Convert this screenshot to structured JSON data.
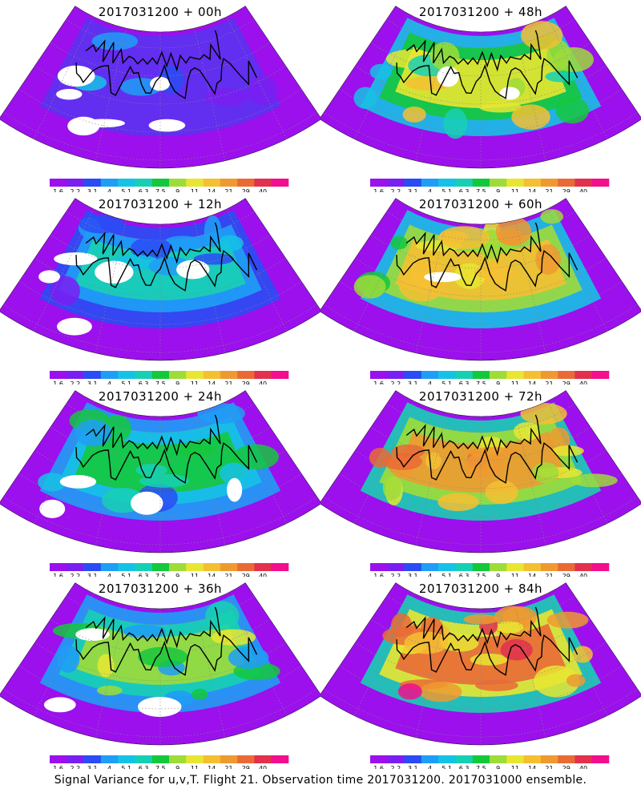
{
  "panels": [
    {
      "title": "2017031200 + 00h",
      "level": 0
    },
    {
      "title": "2017031200 + 48h",
      "level": 4
    },
    {
      "title": "2017031200 + 12h",
      "level": 1
    },
    {
      "title": "2017031200 + 60h",
      "level": 5
    },
    {
      "title": "2017031200 + 24h",
      "level": 2
    },
    {
      "title": "2017031200 + 72h",
      "level": 6
    },
    {
      "title": "2017031200 + 36h",
      "level": 3
    },
    {
      "title": "2017031200 + 84h",
      "level": 7
    }
  ],
  "colorbar": {
    "labels": [
      "1.6",
      "2.2",
      "3.1",
      "4",
      "5.1",
      "6.3",
      "7.5",
      "9",
      "11",
      "14",
      "21",
      "29",
      "40"
    ],
    "colors": [
      "#9b10ec",
      "#7a1ef2",
      "#2a4cf4",
      "#1e9ef6",
      "#15c2e6",
      "#17d0b4",
      "#14c83c",
      "#9edc3a",
      "#e8e632",
      "#f4c032",
      "#ee9a30",
      "#ea6a36",
      "#e2304e",
      "#f20e8c"
    ]
  },
  "footer": "Signal Variance for u,v,T. Flight 21. Observation time 2017031200. 2017031000 ensemble."
}
